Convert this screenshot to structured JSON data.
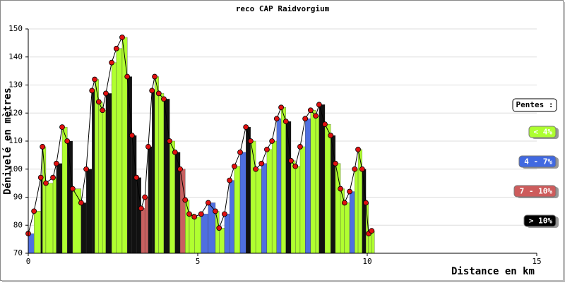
{
  "chart_data": {
    "type": "elevation-profile",
    "title": "reco CAP Raidvorgium",
    "x_label": "Distance en km",
    "y_label": "Dénivelé en mètres",
    "xlim": [
      0,
      15
    ],
    "xticks": [
      0,
      5,
      10,
      15
    ],
    "ylim": [
      70,
      150
    ],
    "yticks": [
      70,
      80,
      90,
      100,
      110,
      120,
      130,
      140,
      150
    ],
    "grid": true,
    "marker_color": "#e01010",
    "series": [
      {
        "x": [
          0,
          0.17,
          0.37,
          0.42,
          0.52,
          0.73,
          0.83,
          1.0,
          1.15,
          1.31,
          1.56,
          1.71,
          1.88,
          1.96,
          2.08,
          2.19,
          2.29,
          2.46,
          2.6,
          2.77,
          2.92,
          3.06,
          3.19,
          3.33,
          3.44,
          3.54,
          3.65,
          3.73,
          3.85,
          4.0,
          4.17,
          4.33,
          4.48,
          4.63,
          4.75,
          4.9,
          5.1,
          5.31,
          5.52,
          5.63,
          5.79,
          5.94,
          6.08,
          6.25,
          6.42,
          6.56,
          6.71,
          6.88,
          7.04,
          7.19,
          7.33,
          7.46,
          7.6,
          7.75,
          7.88,
          8.02,
          8.17,
          8.33,
          8.48,
          8.58,
          8.75,
          8.92,
          9.06,
          9.21,
          9.33,
          9.48,
          9.63,
          9.73,
          9.85,
          9.96,
          10.04,
          10.13
        ],
        "values": [
          77,
          85,
          97,
          108,
          95,
          97,
          102,
          115,
          110,
          93,
          88,
          100,
          128,
          132,
          124,
          121,
          127,
          138,
          143,
          147,
          133,
          112,
          97,
          86,
          90,
          108,
          128,
          133,
          127,
          125,
          110,
          106,
          100,
          89,
          84,
          83,
          84,
          88,
          85,
          79,
          84,
          96,
          101,
          106,
          115,
          110,
          100,
          102,
          107,
          110,
          118,
          122,
          117,
          103,
          101,
          108,
          118,
          121,
          119,
          123,
          116,
          112,
          102,
          93,
          88,
          92,
          100,
          107,
          100,
          88,
          77,
          78
        ],
        "colors": [
          "#4f6fe0",
          "#b0ff30",
          "#111111",
          "#b0ff30",
          "#b0ff30",
          "#b0ff30",
          "#111111",
          "#b0ff30",
          "#111111",
          "#b0ff30",
          "#111111",
          "#111111",
          "#111111",
          "#b0ff30",
          "#b0ff30",
          "#b0ff30",
          "#111111",
          "#b0ff30",
          "#b0ff30",
          "#b0ff30",
          "#111111",
          "#111111",
          "#111111",
          "#c86060",
          "#c86060",
          "#111111",
          "#111111",
          "#b0ff30",
          "#b0ff30",
          "#111111",
          "#b0ff30",
          "#111111",
          "#c86060",
          "#b0ff30",
          "#b0ff30",
          "#b0ff30",
          "#4f6fe0",
          "#4f6fe0",
          "#b0ff30",
          "#b0ff30",
          "#4f6fe0",
          "#4f6fe0",
          "#b0ff30",
          "#4f6fe0",
          "#111111",
          "#b0ff30",
          "#b0ff30",
          "#4f6fe0",
          "#b0ff30",
          "#b0ff30",
          "#4f6fe0",
          "#b0ff30",
          "#111111",
          "#b0ff30",
          "#b0ff30",
          "#b0ff30",
          "#4f6fe0",
          "#b0ff30",
          "#b0ff30",
          "#111111",
          "#b0ff30",
          "#111111",
          "#b0ff30",
          "#b0ff30",
          "#b0ff30",
          "#4f6fe0",
          "#b0ff30",
          "#b0ff30",
          "#111111",
          "#b0ff30",
          "#b0ff30",
          "#b0ff30"
        ]
      }
    ],
    "legend": {
      "title": "Pentes :",
      "entries": [
        {
          "name": "< 4%",
          "color": "#adff2f",
          "text_color": "#ffffff"
        },
        {
          "name": "4 - 7%",
          "color": "#4169e1",
          "text_color": "#ffffff"
        },
        {
          "name": "7 - 10%",
          "color": "#cd5c5c",
          "text_color": "#ffffff"
        },
        {
          "name": "> 10%",
          "color": "#000000",
          "text_color": "#ffffff"
        }
      ]
    }
  }
}
